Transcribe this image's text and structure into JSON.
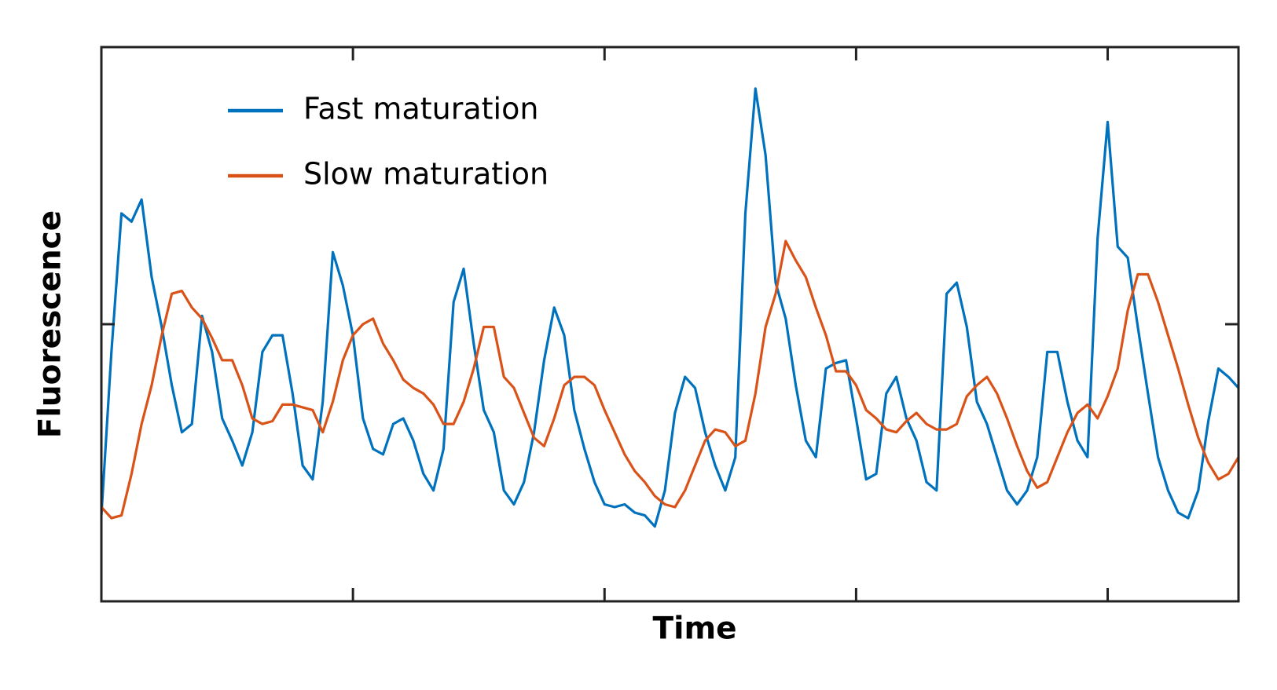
{
  "chart_data": {
    "type": "line",
    "x_label": "Time",
    "y_label": "Fluorescence",
    "xlim": [
      0,
      4.52
    ],
    "ylim": [
      0,
      2
    ],
    "xticks": [
      1,
      2,
      3,
      4
    ],
    "yticks": [
      1
    ],
    "legend": "upper left",
    "x": [
      0,
      0.04,
      0.08,
      0.12,
      0.16,
      0.2,
      0.24,
      0.28,
      0.32,
      0.36,
      0.4,
      0.44,
      0.48,
      0.52,
      0.56,
      0.6,
      0.64,
      0.68,
      0.72,
      0.76,
      0.8,
      0.84,
      0.88,
      0.92,
      0.96,
      1,
      1.04,
      1.08,
      1.12,
      1.16,
      1.2,
      1.24,
      1.28,
      1.32,
      1.36,
      1.4,
      1.44,
      1.48,
      1.52,
      1.56,
      1.6,
      1.64,
      1.68,
      1.72,
      1.76,
      1.8,
      1.84,
      1.88,
      1.92,
      1.96,
      2,
      2.04,
      2.08,
      2.12,
      2.16,
      2.2,
      2.24,
      2.28,
      2.32,
      2.36,
      2.4,
      2.44,
      2.48,
      2.52,
      2.56,
      2.6,
      2.64,
      2.68,
      2.72,
      2.76,
      2.8,
      2.84,
      2.88,
      2.92,
      2.96,
      3,
      3.04,
      3.08,
      3.12,
      3.16,
      3.2,
      3.24,
      3.28,
      3.32,
      3.36,
      3.4,
      3.44,
      3.48,
      3.52,
      3.56,
      3.6,
      3.64,
      3.68,
      3.72,
      3.76,
      3.8,
      3.84,
      3.88,
      3.92,
      3.96,
      4,
      4.04,
      4.08,
      4.12,
      4.16,
      4.2,
      4.24,
      4.28,
      4.32,
      4.36,
      4.4,
      4.44,
      4.48,
      4.52
    ],
    "series": [
      {
        "name": "Fast maturation",
        "color": "#0072bd",
        "values": [
          0.31,
          0.9,
          1.4,
          1.37,
          1.45,
          1.17,
          0.99,
          0.78,
          0.61,
          0.64,
          1.03,
          0.9,
          0.66,
          0.58,
          0.49,
          0.61,
          0.9,
          0.96,
          0.96,
          0.75,
          0.49,
          0.44,
          0.72,
          1.26,
          1.14,
          0.96,
          0.66,
          0.55,
          0.53,
          0.64,
          0.66,
          0.58,
          0.46,
          0.4,
          0.55,
          1.08,
          1.2,
          0.93,
          0.69,
          0.61,
          0.4,
          0.35,
          0.43,
          0.61,
          0.87,
          1.06,
          0.96,
          0.69,
          0.55,
          0.43,
          0.35,
          0.34,
          0.35,
          0.32,
          0.31,
          0.27,
          0.4,
          0.68,
          0.81,
          0.77,
          0.61,
          0.49,
          0.4,
          0.52,
          1.4,
          1.85,
          1.61,
          1.15,
          1.02,
          0.78,
          0.58,
          0.52,
          0.84,
          0.86,
          0.87,
          0.66,
          0.44,
          0.46,
          0.75,
          0.81,
          0.66,
          0.58,
          0.43,
          0.4,
          1.11,
          1.15,
          0.99,
          0.72,
          0.64,
          0.52,
          0.4,
          0.35,
          0.4,
          0.52,
          0.9,
          0.9,
          0.72,
          0.58,
          0.52,
          1.31,
          1.73,
          1.28,
          1.24,
          0.99,
          0.75,
          0.52,
          0.4,
          0.32,
          0.3,
          0.4,
          0.65,
          0.84,
          0.81,
          0.77
        ]
      },
      {
        "name": "Slow maturation",
        "color": "#d95319",
        "values": [
          0.34,
          0.3,
          0.31,
          0.46,
          0.64,
          0.78,
          0.96,
          1.11,
          1.12,
          1.06,
          1.02,
          0.95,
          0.87,
          0.87,
          0.78,
          0.66,
          0.64,
          0.65,
          0.71,
          0.71,
          0.7,
          0.69,
          0.61,
          0.72,
          0.87,
          0.96,
          1,
          1.02,
          0.93,
          0.87,
          0.8,
          0.77,
          0.75,
          0.71,
          0.64,
          0.64,
          0.72,
          0.84,
          0.99,
          0.99,
          0.81,
          0.77,
          0.68,
          0.59,
          0.56,
          0.66,
          0.78,
          0.81,
          0.81,
          0.78,
          0.69,
          0.61,
          0.53,
          0.47,
          0.43,
          0.38,
          0.35,
          0.34,
          0.4,
          0.49,
          0.58,
          0.62,
          0.61,
          0.56,
          0.58,
          0.75,
          0.99,
          1.11,
          1.3,
          1.23,
          1.17,
          1.06,
          0.96,
          0.83,
          0.83,
          0.78,
          0.69,
          0.66,
          0.62,
          0.61,
          0.65,
          0.68,
          0.64,
          0.62,
          0.62,
          0.64,
          0.74,
          0.78,
          0.81,
          0.75,
          0.66,
          0.56,
          0.47,
          0.41,
          0.43,
          0.52,
          0.61,
          0.68,
          0.71,
          0.66,
          0.74,
          0.84,
          1.05,
          1.18,
          1.18,
          1.08,
          0.96,
          0.84,
          0.71,
          0.59,
          0.5,
          0.44,
          0.46,
          0.52
        ]
      }
    ]
  }
}
